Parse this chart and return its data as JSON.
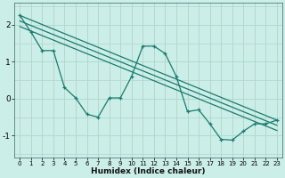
{
  "bg_color": "#cceee8",
  "grid_color": "#aaddcc",
  "line_color": "#1a7a6e",
  "xlabel": "Humidex (Indice chaleur)",
  "xlim": [
    -0.5,
    23.5
  ],
  "ylim": [
    -1.6,
    2.6
  ],
  "yticks": [
    -1,
    0,
    1,
    2
  ],
  "xticks": [
    0,
    1,
    2,
    3,
    4,
    5,
    6,
    7,
    8,
    9,
    10,
    11,
    12,
    13,
    14,
    15,
    16,
    17,
    18,
    19,
    20,
    21,
    22,
    23
  ],
  "zigzag": [
    2.25,
    1.8,
    1.3,
    1.3,
    0.3,
    0.02,
    -0.42,
    -0.5,
    0.02,
    0.02,
    0.6,
    1.42,
    1.42,
    1.22,
    0.6,
    -0.35,
    -0.3,
    -0.68,
    -1.1,
    -1.12,
    -0.88,
    -0.68,
    -0.68,
    -0.58
  ],
  "trend_lines": [
    {
      "x0": 0,
      "y0": 2.25,
      "x1": 23,
      "y1": -0.58
    },
    {
      "x0": 0,
      "y0": 2.1,
      "x1": 23,
      "y1": -0.72
    },
    {
      "x0": 0,
      "y0": 1.95,
      "x1": 23,
      "y1": -0.86
    }
  ]
}
